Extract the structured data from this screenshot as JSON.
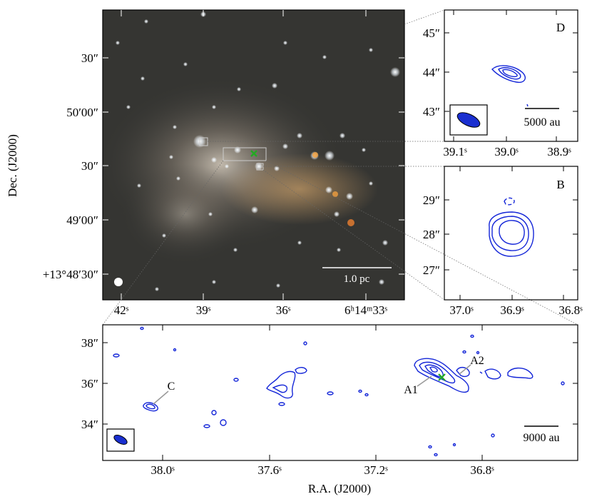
{
  "panels": {
    "main": {
      "ylabel": "Dec. (J2000)",
      "yticks": [
        "30″",
        "50′00″",
        "30″",
        "49′00″",
        "+13°48′30″"
      ],
      "xticks": [
        "42ˢ",
        "39ˢ",
        "36ˢ",
        "6ʰ14ᵐ33ˢ"
      ],
      "scalebar": "1.0 pc"
    },
    "D": {
      "label": "D",
      "yticks": [
        "45″",
        "44″",
        "43″"
      ],
      "xticks": [
        "39.1ˢ",
        "39.0ˢ",
        "38.9ˢ"
      ],
      "scalebar": "5000 au"
    },
    "B": {
      "label": "B",
      "yticks": [
        "29″",
        "28″",
        "27″"
      ],
      "xticks": [
        "37.0ˢ",
        "36.9ˢ",
        "36.8ˢ"
      ]
    },
    "bottom": {
      "xlabel": "R.A. (J2000)",
      "yticks": [
        "38″",
        "36″",
        "34″"
      ],
      "xticks": [
        "38.0ˢ",
        "37.6ˢ",
        "37.2ˢ",
        "36.8ˢ"
      ],
      "labels": {
        "C": "C",
        "A1": "A1",
        "A2": "A2"
      },
      "scalebar": "9000 au"
    }
  },
  "colors": {
    "contour": "#1426d8",
    "marker": "#22aa22",
    "beam": "#1a2fd0"
  },
  "chart_data": [
    {
      "type": "image",
      "title": "",
      "ylabel": "Dec. (J2000)",
      "xlabel": "",
      "ytick_labels": [
        "30″",
        "50′00″",
        "30″",
        "49′00″",
        "+13°48′30″"
      ],
      "xtick_labels": [
        "42ˢ",
        "39ˢ",
        "36ˢ",
        "6ʰ14ᵐ33ˢ"
      ],
      "annotations": [
        "1.0 pc",
        "green cross marker",
        "zoom boxes"
      ]
    },
    {
      "type": "contour",
      "label": "D",
      "ytick_labels": [
        "45″",
        "44″",
        "43″"
      ],
      "xtick_labels": [
        "39.1ˢ",
        "39.0ˢ",
        "38.9ˢ"
      ],
      "annotations": [
        "5000 au",
        "beam ellipse"
      ]
    },
    {
      "type": "contour",
      "label": "B",
      "ytick_labels": [
        "29″",
        "28″",
        "27″"
      ],
      "xtick_labels": [
        "37.0ˢ",
        "36.9ˢ",
        "36.8ˢ"
      ]
    },
    {
      "type": "contour",
      "xlabel": "R.A. (J2000)",
      "ytick_labels": [
        "38″",
        "36″",
        "34″"
      ],
      "xtick_labels": [
        "38.0ˢ",
        "37.6ˢ",
        "37.2ˢ",
        "36.8ˢ"
      ],
      "sources": [
        "C",
        "A1",
        "A2"
      ],
      "annotations": [
        "9000 au",
        "beam ellipse",
        "green cross marker"
      ]
    }
  ]
}
